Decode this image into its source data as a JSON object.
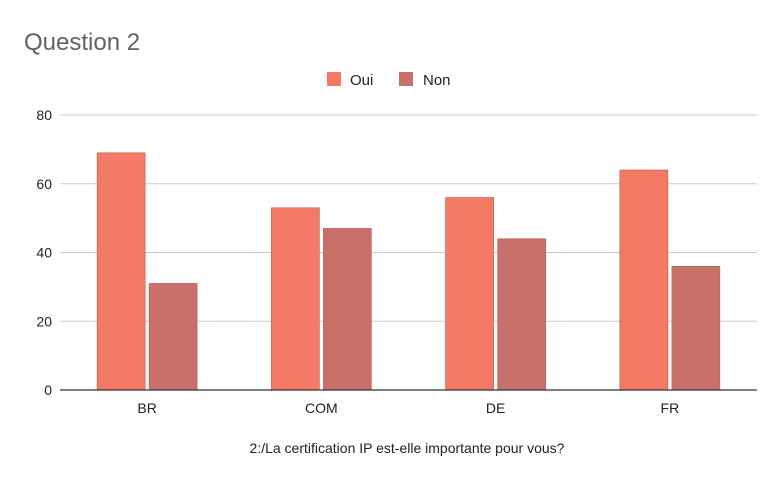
{
  "chart_data": {
    "type": "bar",
    "title": "Question 2",
    "xlabel": "2:/La certification IP est-elle importante pour vous?",
    "ylabel": "",
    "categories": [
      "BR",
      "COM",
      "DE",
      "FR"
    ],
    "series": [
      {
        "name": "Oui",
        "color": "#f47a66",
        "values": [
          69,
          53,
          56,
          64
        ]
      },
      {
        "name": "Non",
        "color": "#c8716a",
        "values": [
          31,
          47,
          44,
          36
        ]
      }
    ],
    "ylim": [
      0,
      80
    ],
    "yticks": [
      0,
      20,
      40,
      60,
      80
    ],
    "grid": true,
    "legend": "top-center"
  }
}
